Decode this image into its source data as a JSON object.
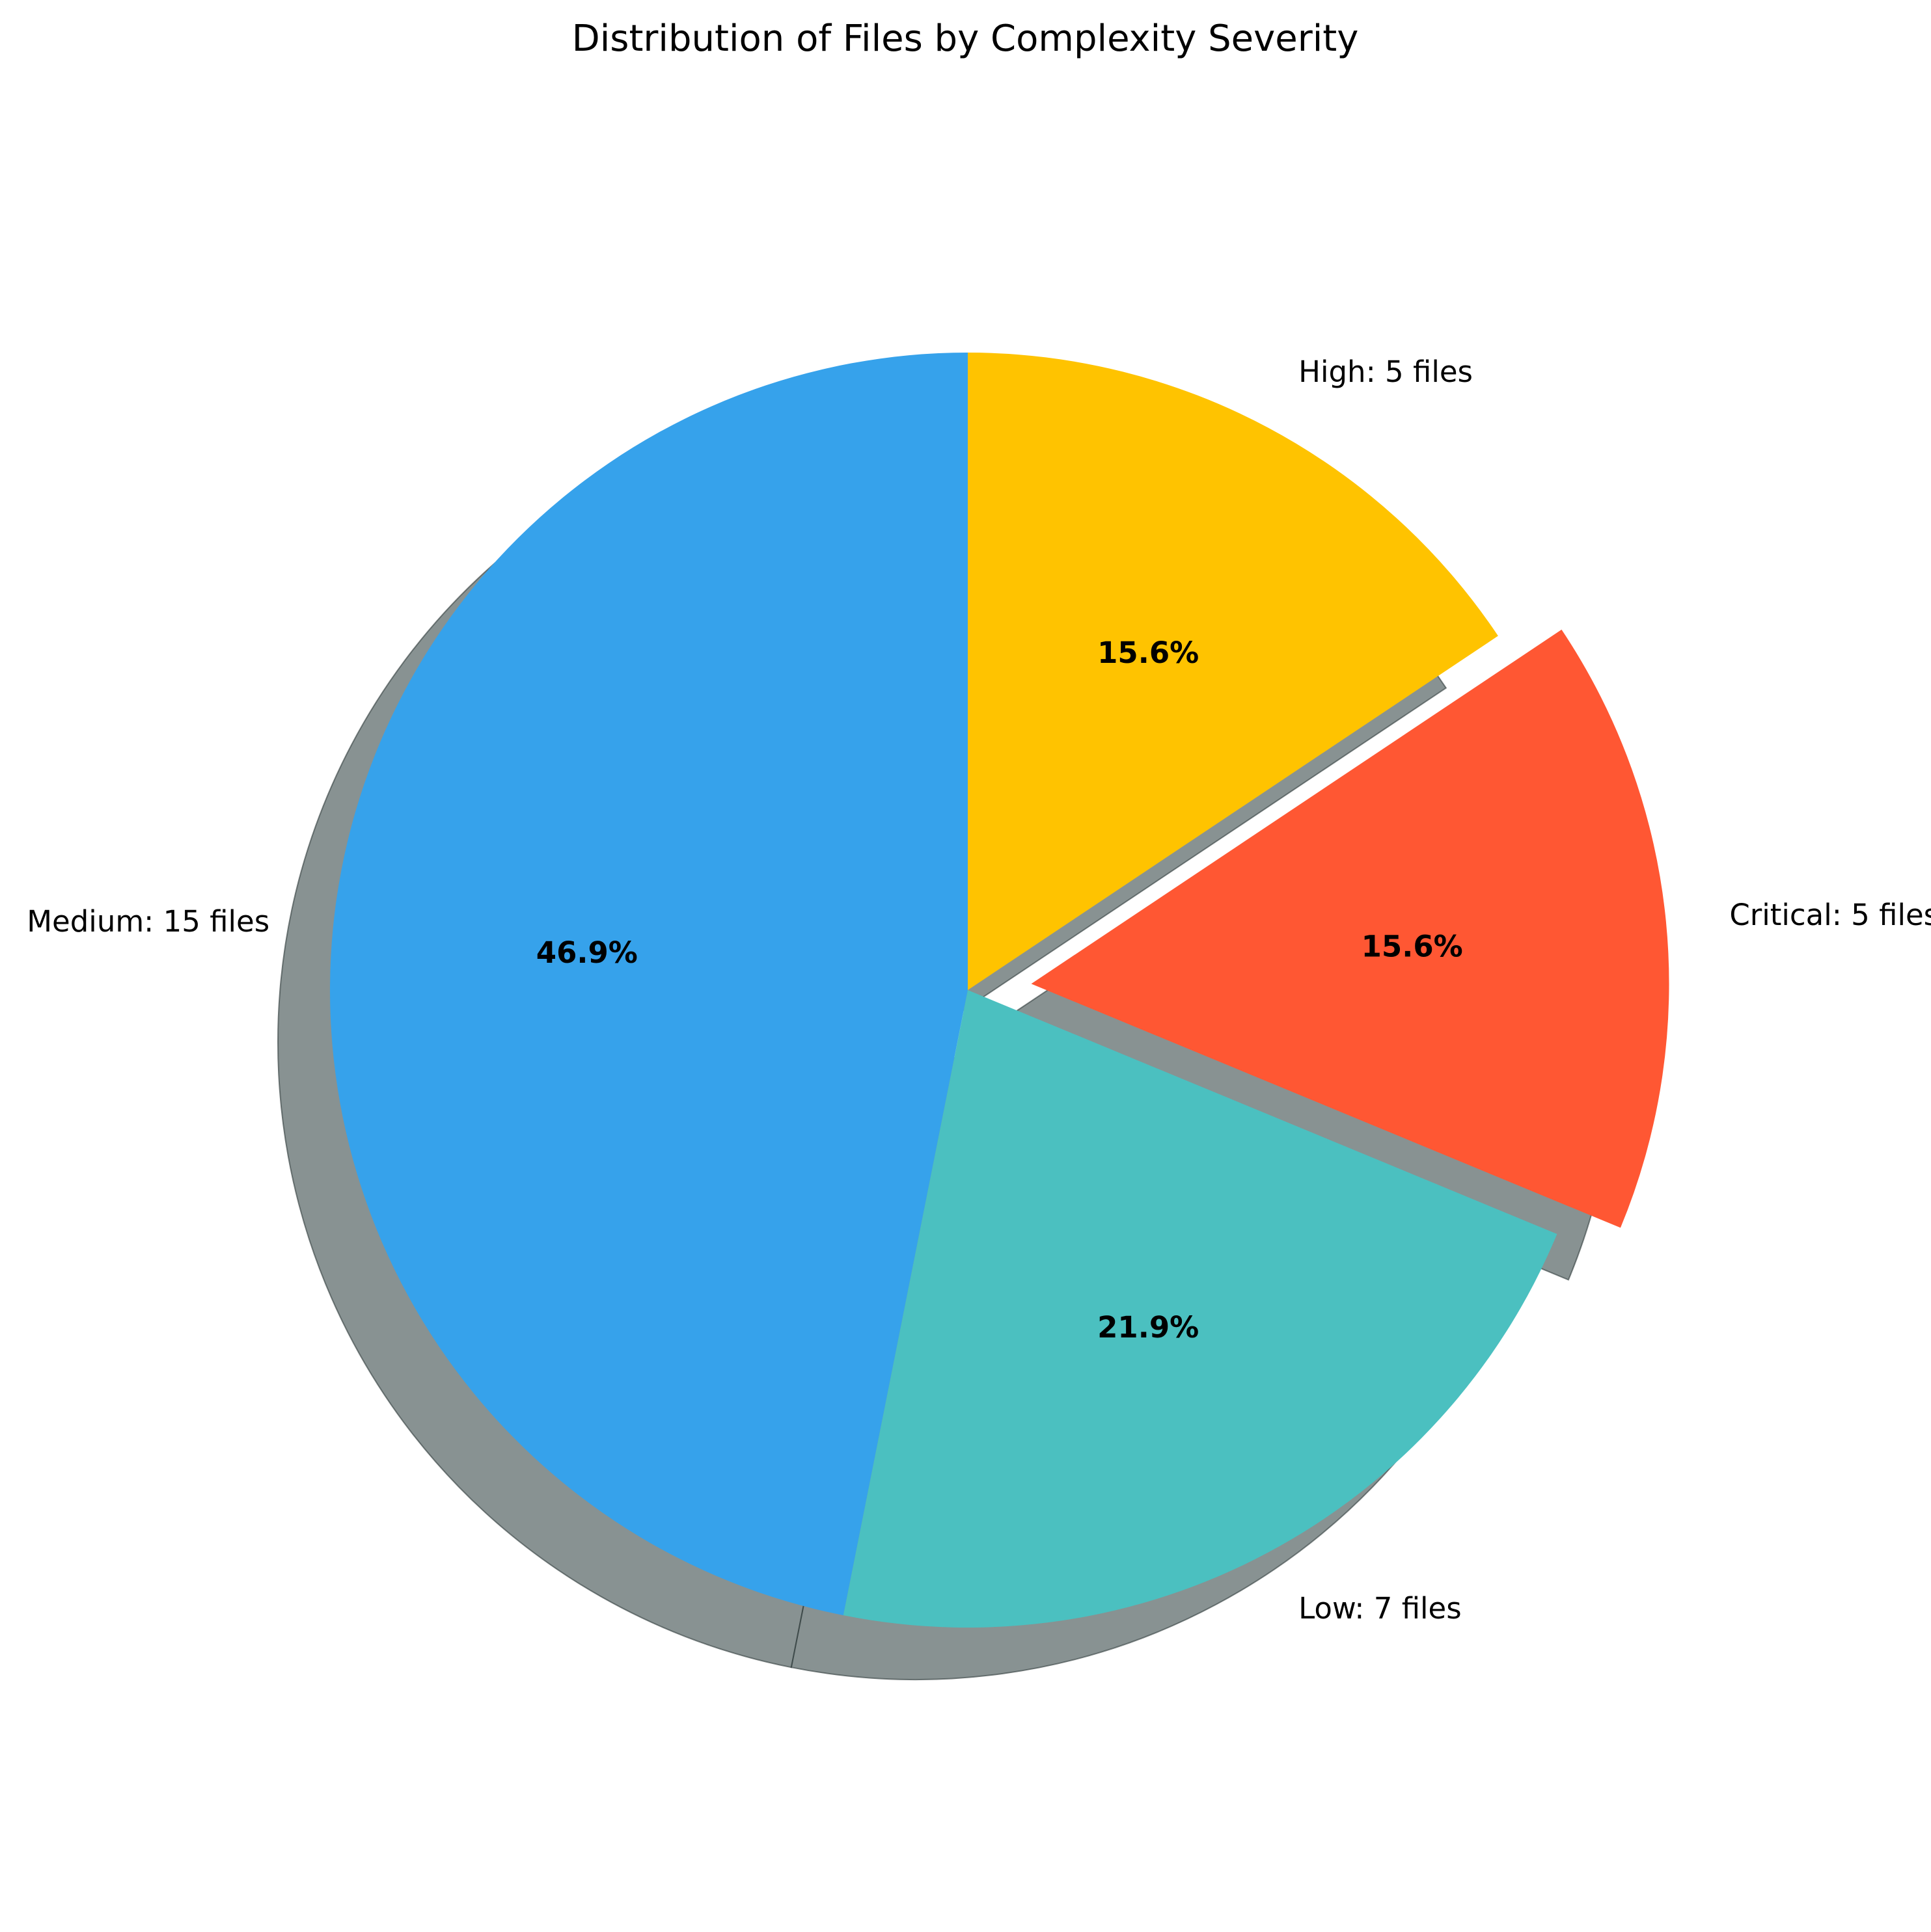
{
  "chart_data": {
    "type": "pie",
    "title": "Distribution of Files by Complexity Severity",
    "slices": [
      {
        "label": "Medium",
        "value": 15,
        "label_text": "Medium: 15 files",
        "pct_text": "46.9%",
        "color": "#36A2EB",
        "exploded": false
      },
      {
        "label": "Low",
        "value": 7,
        "label_text": "Low: 7 files",
        "pct_text": "21.9%",
        "color": "#4BC0C0",
        "exploded": false
      },
      {
        "label": "Critical",
        "value": 5,
        "label_text": "Critical: 5 files",
        "pct_text": "15.6%",
        "color": "#FF5733",
        "exploded": true
      },
      {
        "label": "High",
        "value": 5,
        "label_text": "High: 5 files",
        "pct_text": "15.6%",
        "color": "#FFC300",
        "exploded": false
      }
    ],
    "start_angle": 90,
    "direction": "counterclockwise",
    "shadow": true,
    "legend": "none"
  }
}
